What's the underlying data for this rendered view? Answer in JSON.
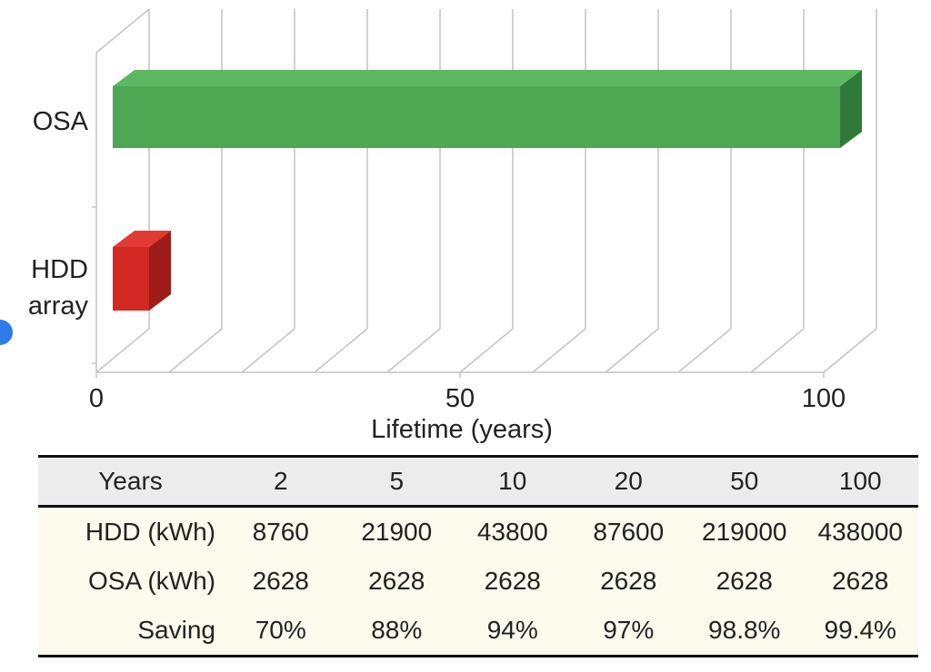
{
  "chart_data": {
    "type": "bar",
    "orientation": "horizontal",
    "categories": [
      "OSA",
      "HDD array"
    ],
    "values": [
      100,
      5
    ],
    "colors": [
      "#4ea752",
      "#d22a22"
    ],
    "xlabel": "Lifetime (years)",
    "xlim": [
      0,
      100
    ],
    "xticks": [
      0,
      50,
      100
    ],
    "grid": true,
    "legend": false
  },
  "table": {
    "header": [
      "Years",
      "2",
      "5",
      "10",
      "20",
      "50",
      "100"
    ],
    "rows": [
      [
        "HDD (kWh)",
        "8760",
        "21900",
        "43800",
        "87600",
        "219000",
        "438000"
      ],
      [
        "OSA (kWh)",
        "2628",
        "2628",
        "2628",
        "2628",
        "2628",
        "2628"
      ],
      [
        "Saving",
        "70%",
        "88%",
        "94%",
        "97%",
        "98.8%",
        "99.4%"
      ]
    ]
  }
}
